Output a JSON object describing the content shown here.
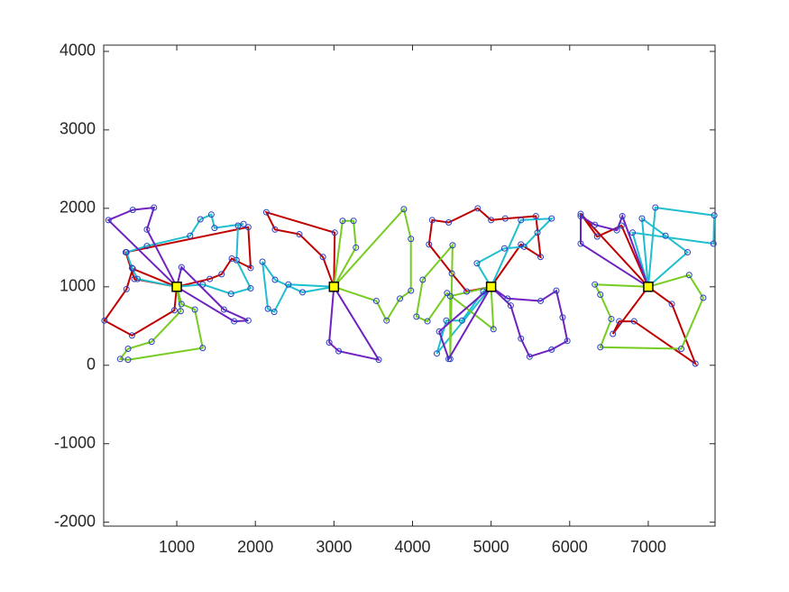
{
  "chart_data": {
    "type": "line",
    "xlim": [
      70,
      7850
    ],
    "ylim": [
      -2050,
      4080
    ],
    "xticks": [
      1000,
      2000,
      3000,
      4000,
      5000,
      6000,
      7000
    ],
    "yticks": [
      -2000,
      -1000,
      0,
      1000,
      2000,
      3000,
      4000
    ],
    "marker_color": "#2a3fc0",
    "depots": {
      "x": [
        1000,
        3000,
        5000,
        7000
      ],
      "y": [
        1000,
        1000,
        1000,
        1000
      ],
      "color": "#ffff00"
    },
    "series": [
      {
        "color": "#c00000",
        "x": [
          1000,
          1420,
          1570,
          1700,
          1940,
          1910,
          350,
          460,
          1000
        ],
        "y": [
          1000,
          1100,
          1160,
          1360,
          1240,
          1760,
          1440,
          1100,
          1000
        ]
      },
      {
        "color": "#c00000",
        "x": [
          1000,
          970,
          430,
          80,
          360,
          440,
          1000
        ],
        "y": [
          1000,
          700,
          380,
          570,
          970,
          1230,
          1000
        ]
      },
      {
        "color": "#1fbfcf",
        "x": [
          1000,
          1330,
          1690,
          1940,
          1760,
          1780,
          1850,
          1480,
          1440,
          1300,
          1170,
          620,
          360,
          430,
          500,
          1000
        ],
        "y": [
          1000,
          1030,
          910,
          980,
          1340,
          1780,
          1800,
          1750,
          1920,
          1860,
          1650,
          1520,
          1440,
          1240,
          1100,
          1000
        ]
      },
      {
        "color": "#77cc22",
        "x": [
          1000,
          1050,
          680,
          380,
          280,
          380,
          1330,
          1230,
          1060,
          1000
        ],
        "y": [
          1000,
          690,
          300,
          210,
          80,
          70,
          220,
          710,
          780,
          1000
        ]
      },
      {
        "color": "#7022c0",
        "x": [
          1000,
          130,
          440,
          710,
          620,
          1000
        ],
        "y": [
          1000,
          1850,
          1980,
          2010,
          1730,
          1000
        ]
      },
      {
        "color": "#7022c0",
        "x": [
          1000,
          1730,
          1910,
          1600,
          1060,
          1000
        ],
        "y": [
          1000,
          560,
          570,
          710,
          1250,
          1000
        ]
      },
      {
        "color": "#c00000",
        "x": [
          3000,
          2860,
          2560,
          2250,
          2140,
          3010,
          3000
        ],
        "y": [
          1000,
          1380,
          1670,
          1730,
          1950,
          1690,
          1000
        ]
      },
      {
        "color": "#1fbfcf",
        "x": [
          3000,
          2420,
          2240,
          2160,
          2090,
          2250,
          2600,
          3000
        ],
        "y": [
          1000,
          1030,
          680,
          720,
          1320,
          1090,
          930,
          1000
        ]
      },
      {
        "color": "#77cc22",
        "x": [
          3000,
          3110,
          3250,
          3280,
          3000
        ],
        "y": [
          1000,
          1840,
          1840,
          1500,
          1000
        ]
      },
      {
        "color": "#77cc22",
        "x": [
          3000,
          3890,
          3980,
          3980,
          3840,
          3670,
          3540,
          3000
        ],
        "y": [
          1000,
          1990,
          1610,
          950,
          850,
          570,
          820,
          1000
        ]
      },
      {
        "color": "#7022c0",
        "x": [
          3000,
          2940,
          3060,
          3570,
          3000
        ],
        "y": [
          1000,
          290,
          180,
          70,
          1000
        ]
      },
      {
        "color": "#c00000",
        "x": [
          5000,
          4690,
          4500,
          4210,
          4250,
          4460,
          4830,
          5000,
          5180,
          5570,
          5630,
          5380,
          5000
        ],
        "y": [
          1000,
          940,
          1170,
          1540,
          1850,
          1820,
          2000,
          1850,
          1870,
          1900,
          1380,
          1540,
          1000
        ]
      },
      {
        "color": "#1fbfcf",
        "x": [
          5000,
          4820,
          5170,
          5420,
          5590,
          5770,
          5380,
          5000
        ],
        "y": [
          1000,
          1300,
          1490,
          1510,
          1690,
          1870,
          1850,
          1000
        ]
      },
      {
        "color": "#1fbfcf",
        "x": [
          5000,
          4310,
          4430,
          4630,
          4900,
          5000
        ],
        "y": [
          1000,
          150,
          570,
          570,
          940,
          1000
        ]
      },
      {
        "color": "#77cc22",
        "x": [
          5000,
          4480,
          4480,
          4510,
          4130,
          4050,
          4190,
          4440,
          5030,
          5000
        ],
        "y": [
          1000,
          880,
          80,
          1530,
          1090,
          620,
          560,
          920,
          460,
          1000
        ]
      },
      {
        "color": "#7022c0",
        "x": [
          5000,
          5250,
          5380,
          5490,
          5770,
          5970,
          5910,
          5830,
          5630,
          5210,
          5000
        ],
        "y": [
          1000,
          760,
          340,
          110,
          200,
          310,
          610,
          950,
          820,
          850,
          1000
        ]
      },
      {
        "color": "#7022c0",
        "x": [
          5000,
          4460,
          4340,
          5000
        ],
        "y": [
          1000,
          80,
          430,
          1000
        ]
      },
      {
        "color": "#c00000",
        "x": [
          7000,
          7300,
          7600,
          6820,
          6630,
          6550,
          7000
        ],
        "y": [
          1000,
          780,
          20,
          560,
          560,
          400,
          1000
        ]
      },
      {
        "color": "#c00000",
        "x": [
          7000,
          6140,
          6350,
          6660,
          7000
        ],
        "y": [
          1000,
          1930,
          1640,
          1780,
          1000
        ]
      },
      {
        "color": "#1fbfcf",
        "x": [
          7000,
          6920,
          7220,
          7500,
          7000
        ],
        "y": [
          1000,
          1870,
          1650,
          1440,
          1000
        ]
      },
      {
        "color": "#1fbfcf",
        "x": [
          7000,
          7090,
          7840,
          7830,
          6800,
          7000
        ],
        "y": [
          1000,
          2010,
          1910,
          1550,
          1690,
          1000
        ]
      },
      {
        "color": "#77cc22",
        "x": [
          7000,
          6320,
          6390,
          6530,
          6390,
          7420,
          7700,
          7520,
          7000
        ],
        "y": [
          1000,
          1030,
          900,
          590,
          230,
          210,
          860,
          1150,
          1000
        ]
      },
      {
        "color": "#7022c0",
        "x": [
          7000,
          6670,
          6600,
          6320,
          6140,
          6140,
          7000
        ],
        "y": [
          1000,
          1900,
          1720,
          1790,
          1900,
          1550,
          1000
        ]
      }
    ]
  }
}
